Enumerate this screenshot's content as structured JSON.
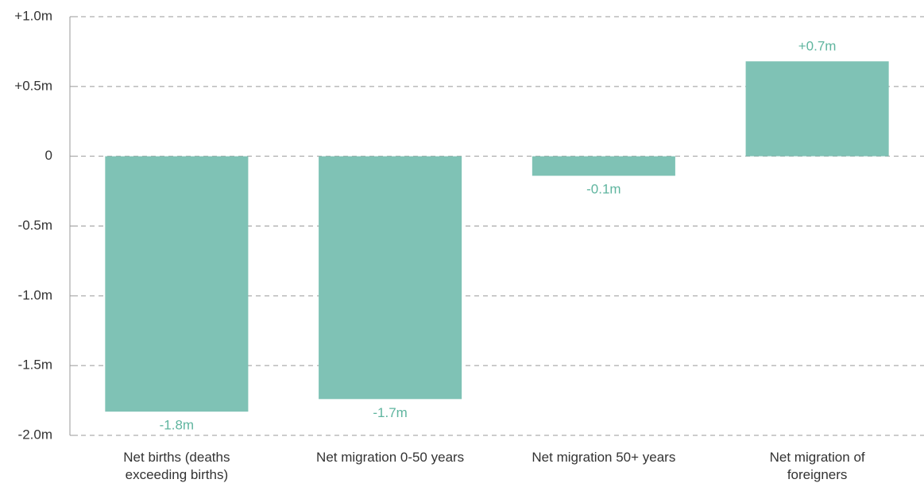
{
  "chart_data": {
    "type": "bar",
    "categories": [
      "Net births (deaths exceeding births)",
      "Net migration 0-50 years",
      "Net migration 50+ years",
      "Net migration of foreigners"
    ],
    "values": [
      -1.83,
      -1.74,
      -0.14,
      0.68
    ],
    "value_labels": [
      "-1.8m",
      "-1.7m",
      "-0.1m",
      "+0.7m"
    ],
    "color": "#7fc2b5",
    "label_color": "#5fb59f",
    "ylim": [
      -2,
      1
    ],
    "yticks": [
      {
        "value": -2,
        "label": "-2.0m"
      },
      {
        "value": -1.5,
        "label": "-1.5m"
      },
      {
        "value": -1,
        "label": "-1.0m"
      },
      {
        "value": -0.5,
        "label": "-0.5m"
      },
      0,
      {
        "value": 0.5,
        "label": "+0.5m"
      },
      {
        "value": 1,
        "label": "+1.0m"
      }
    ],
    "grid": true
  }
}
